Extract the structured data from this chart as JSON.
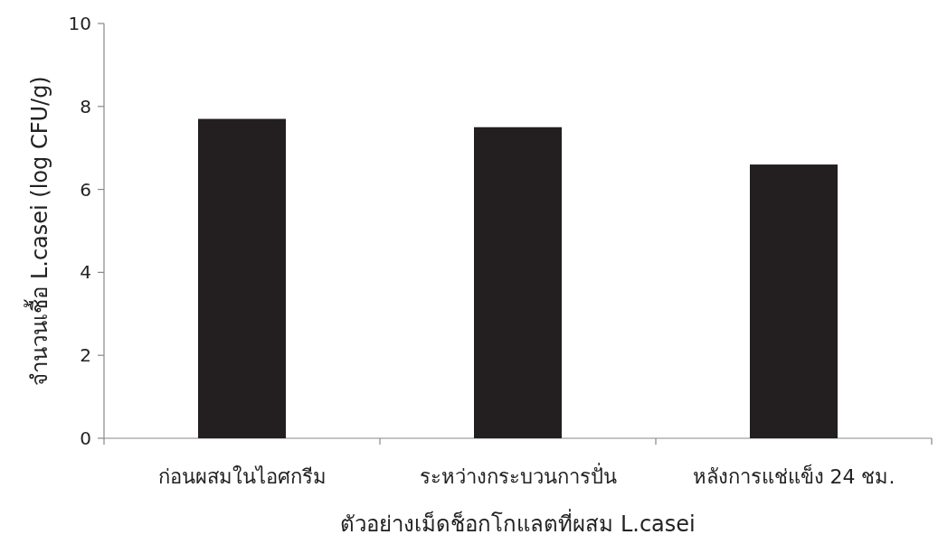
{
  "chart_data": {
    "type": "bar",
    "categories": [
      "ก่อนผสมในไอศกรีม",
      "ระหว่างกระบวนการปั่น",
      "หลังการแช่แข็ง 24 ชม."
    ],
    "values": [
      7.7,
      7.5,
      6.6
    ],
    "color": "#231f20",
    "xlabel": "ตัวอย่างเม็ดช็อกโกแลตที่ผสม L.casei",
    "ylabel": "จำนวนเชื้อ L.casei  (log CFU/g)",
    "ylim": [
      0,
      10
    ],
    "yticks": [
      0,
      2,
      4,
      6,
      8,
      10
    ],
    "grid": false
  }
}
